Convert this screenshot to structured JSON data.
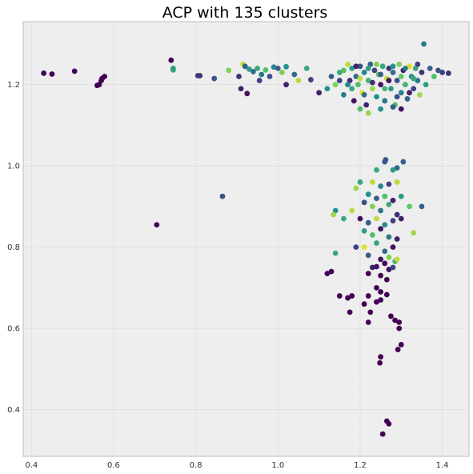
{
  "chart_data": {
    "type": "scatter",
    "title": "ACP with 135 clusters",
    "xlabel": "",
    "ylabel": "",
    "xlim": [
      0.38,
      1.465
    ],
    "ylim": [
      0.285,
      1.355
    ],
    "xticks": [
      0.4,
      0.6,
      0.8,
      1.0,
      1.2,
      1.4
    ],
    "yticks": [
      0.4,
      0.6,
      0.8,
      1.0,
      1.2
    ],
    "xtick_labels": [
      "0.4",
      "0.6",
      "0.8",
      "1.0",
      "1.2",
      "1.4"
    ],
    "ytick_labels": [
      "0.4",
      "0.6",
      "0.8",
      "1.0",
      "1.2"
    ],
    "grid": true,
    "legend": "none",
    "colormap": "viridis",
    "colormap_stops": [
      "#440154",
      "#3b528b",
      "#21918c",
      "#5ec962",
      "#fde725"
    ],
    "points": [
      {
        "x": 0.43,
        "y": 1.228,
        "c": 0
      },
      {
        "x": 0.45,
        "y": 1.226,
        "c": 0
      },
      {
        "x": 0.505,
        "y": 1.233,
        "c": 0
      },
      {
        "x": 0.56,
        "y": 1.198,
        "c": 0
      },
      {
        "x": 0.565,
        "y": 1.2,
        "c": 0
      },
      {
        "x": 0.57,
        "y": 1.21,
        "c": 0
      },
      {
        "x": 0.572,
        "y": 1.215,
        "c": 0
      },
      {
        "x": 0.578,
        "y": 1.22,
        "c": 0
      },
      {
        "x": 0.74,
        "y": 1.26,
        "c": 0
      },
      {
        "x": 0.745,
        "y": 1.236,
        "c": 0.6
      },
      {
        "x": 0.745,
        "y": 1.24,
        "c": 0.55
      },
      {
        "x": 0.805,
        "y": 1.222,
        "c": 0.2
      },
      {
        "x": 0.81,
        "y": 1.222,
        "c": 0.15
      },
      {
        "x": 0.845,
        "y": 1.215,
        "c": 0.25
      },
      {
        "x": 0.88,
        "y": 1.235,
        "c": 0.8
      },
      {
        "x": 0.905,
        "y": 1.22,
        "c": 0.15
      },
      {
        "x": 0.91,
        "y": 1.19,
        "c": 0.1
      },
      {
        "x": 0.915,
        "y": 1.25,
        "c": 0.9
      },
      {
        "x": 0.92,
        "y": 1.245,
        "c": 0.3
      },
      {
        "x": 0.925,
        "y": 1.178,
        "c": 0.05
      },
      {
        "x": 0.93,
        "y": 1.238,
        "c": 0.55
      },
      {
        "x": 0.94,
        "y": 1.232,
        "c": 0.35
      },
      {
        "x": 0.95,
        "y": 1.24,
        "c": 0.6
      },
      {
        "x": 0.955,
        "y": 1.21,
        "c": 0.2
      },
      {
        "x": 0.96,
        "y": 1.225,
        "c": 0.4
      },
      {
        "x": 0.97,
        "y": 1.236,
        "c": 0.7
      },
      {
        "x": 0.98,
        "y": 1.22,
        "c": 0.25
      },
      {
        "x": 0.99,
        "y": 1.243,
        "c": 0.45
      },
      {
        "x": 1.0,
        "y": 1.24,
        "c": 0.3
      },
      {
        "x": 1.01,
        "y": 1.23,
        "c": 0.8
      },
      {
        "x": 1.02,
        "y": 1.2,
        "c": 0.1
      },
      {
        "x": 1.02,
        "y": 1.244,
        "c": 0.5
      },
      {
        "x": 1.04,
        "y": 1.225,
        "c": 0.35
      },
      {
        "x": 1.05,
        "y": 1.21,
        "c": 0.9
      },
      {
        "x": 1.07,
        "y": 1.24,
        "c": 0.6
      },
      {
        "x": 1.08,
        "y": 1.212,
        "c": 0.2
      },
      {
        "x": 1.1,
        "y": 1.18,
        "c": 0.1
      },
      {
        "x": 1.12,
        "y": 1.19,
        "c": 0.5
      },
      {
        "x": 1.13,
        "y": 1.22,
        "c": 0.3
      },
      {
        "x": 1.14,
        "y": 1.2,
        "c": 0.8
      },
      {
        "x": 1.15,
        "y": 1.23,
        "c": 0.6
      },
      {
        "x": 1.16,
        "y": 1.175,
        "c": 0.4
      },
      {
        "x": 1.17,
        "y": 1.25,
        "c": 0.9
      },
      {
        "x": 1.175,
        "y": 1.21,
        "c": 0.15
      },
      {
        "x": 1.18,
        "y": 1.24,
        "c": 0.55
      },
      {
        "x": 1.185,
        "y": 1.16,
        "c": 0.05
      },
      {
        "x": 1.19,
        "y": 1.22,
        "c": 0.35
      },
      {
        "x": 1.195,
        "y": 1.2,
        "c": 0.7
      },
      {
        "x": 1.2,
        "y": 1.245,
        "c": 0.25
      },
      {
        "x": 1.205,
        "y": 1.18,
        "c": 0.95
      },
      {
        "x": 1.21,
        "y": 1.23,
        "c": 0.45
      },
      {
        "x": 1.215,
        "y": 1.15,
        "c": 0.1
      },
      {
        "x": 1.22,
        "y": 1.21,
        "c": 0.65
      },
      {
        "x": 1.225,
        "y": 1.25,
        "c": 0.3
      },
      {
        "x": 1.23,
        "y": 1.19,
        "c": 0.85
      },
      {
        "x": 1.235,
        "y": 1.235,
        "c": 0.2
      },
      {
        "x": 1.24,
        "y": 1.17,
        "c": 0.5
      },
      {
        "x": 1.245,
        "y": 1.225,
        "c": 0.75
      },
      {
        "x": 1.25,
        "y": 1.2,
        "c": 0.05
      },
      {
        "x": 1.255,
        "y": 1.245,
        "c": 0.6
      },
      {
        "x": 1.26,
        "y": 1.16,
        "c": 0.4
      },
      {
        "x": 1.265,
        "y": 1.215,
        "c": 0.9
      },
      {
        "x": 1.27,
        "y": 1.24,
        "c": 0.15
      },
      {
        "x": 1.275,
        "y": 1.19,
        "c": 0.55
      },
      {
        "x": 1.28,
        "y": 1.23,
        "c": 0.35
      },
      {
        "x": 1.285,
        "y": 1.15,
        "c": 0.7
      },
      {
        "x": 1.29,
        "y": 1.21,
        "c": 0.25
      },
      {
        "x": 1.295,
        "y": 1.25,
        "c": 0.8
      },
      {
        "x": 1.3,
        "y": 1.18,
        "c": 0.45
      },
      {
        "x": 1.305,
        "y": 1.235,
        "c": 0.1
      },
      {
        "x": 1.31,
        "y": 1.2,
        "c": 0.65
      },
      {
        "x": 1.315,
        "y": 1.165,
        "c": 0.3
      },
      {
        "x": 1.32,
        "y": 1.245,
        "c": 0.95
      },
      {
        "x": 1.325,
        "y": 1.22,
        "c": 0.5
      },
      {
        "x": 1.33,
        "y": 1.19,
        "c": 0.2
      },
      {
        "x": 1.335,
        "y": 1.24,
        "c": 0.6
      },
      {
        "x": 1.34,
        "y": 1.21,
        "c": 0.4
      },
      {
        "x": 1.345,
        "y": 1.175,
        "c": 0.85
      },
      {
        "x": 1.35,
        "y": 1.23,
        "c": 0.15
      },
      {
        "x": 1.355,
        "y": 1.3,
        "c": 0.4
      },
      {
        "x": 1.36,
        "y": 1.2,
        "c": 0.55
      },
      {
        "x": 1.37,
        "y": 1.24,
        "c": 0.3
      },
      {
        "x": 1.38,
        "y": 1.22,
        "c": 0.7
      },
      {
        "x": 1.39,
        "y": 1.235,
        "c": 0.25
      },
      {
        "x": 1.4,
        "y": 1.23,
        "c": 0.2
      },
      {
        "x": 1.415,
        "y": 1.228,
        "c": 0.15
      },
      {
        "x": 1.15,
        "y": 1.21,
        "c": 0.2
      },
      {
        "x": 1.16,
        "y": 1.235,
        "c": 0.7
      },
      {
        "x": 1.17,
        "y": 1.2,
        "c": 0.45
      },
      {
        "x": 1.18,
        "y": 1.19,
        "c": 0.6
      },
      {
        "x": 1.19,
        "y": 1.245,
        "c": 0.1
      },
      {
        "x": 1.2,
        "y": 1.215,
        "c": 0.9
      },
      {
        "x": 1.21,
        "y": 1.175,
        "c": 0.35
      },
      {
        "x": 1.22,
        "y": 1.24,
        "c": 0.55
      },
      {
        "x": 1.23,
        "y": 1.205,
        "c": 0.15
      },
      {
        "x": 1.24,
        "y": 1.25,
        "c": 0.8
      },
      {
        "x": 1.25,
        "y": 1.225,
        "c": 0.3
      },
      {
        "x": 1.26,
        "y": 1.19,
        "c": 0.65
      },
      {
        "x": 1.27,
        "y": 1.21,
        "c": 0.05
      },
      {
        "x": 1.28,
        "y": 1.245,
        "c": 0.5
      },
      {
        "x": 1.29,
        "y": 1.17,
        "c": 0.25
      },
      {
        "x": 1.3,
        "y": 1.22,
        "c": 0.75
      },
      {
        "x": 1.31,
        "y": 1.24,
        "c": 0.4
      },
      {
        "x": 1.32,
        "y": 1.18,
        "c": 0.1
      },
      {
        "x": 1.33,
        "y": 1.215,
        "c": 0.6
      },
      {
        "x": 1.34,
        "y": 1.25,
        "c": 0.2
      },
      {
        "x": 1.2,
        "y": 1.14,
        "c": 0.7
      },
      {
        "x": 1.22,
        "y": 1.13,
        "c": 0.85
      },
      {
        "x": 1.25,
        "y": 1.14,
        "c": 0.5
      },
      {
        "x": 1.28,
        "y": 1.145,
        "c": 0.3
      },
      {
        "x": 1.3,
        "y": 1.14,
        "c": 0.05
      },
      {
        "x": 1.26,
        "y": 1.01,
        "c": 0.3
      },
      {
        "x": 1.262,
        "y": 1.015,
        "c": 0.25
      },
      {
        "x": 1.305,
        "y": 1.01,
        "c": 0.3
      },
      {
        "x": 1.24,
        "y": 0.99,
        "c": 0.6
      },
      {
        "x": 1.28,
        "y": 0.99,
        "c": 0.55
      },
      {
        "x": 1.29,
        "y": 0.995,
        "c": 0.35
      },
      {
        "x": 1.2,
        "y": 0.96,
        "c": 0.6
      },
      {
        "x": 1.23,
        "y": 0.96,
        "c": 0.9
      },
      {
        "x": 1.25,
        "y": 0.95,
        "c": 0.45
      },
      {
        "x": 1.27,
        "y": 0.955,
        "c": 0.2
      },
      {
        "x": 1.29,
        "y": 0.96,
        "c": 0.9
      },
      {
        "x": 1.19,
        "y": 0.945,
        "c": 0.85
      },
      {
        "x": 1.22,
        "y": 0.93,
        "c": 0.5
      },
      {
        "x": 1.24,
        "y": 0.92,
        "c": 0.3
      },
      {
        "x": 1.26,
        "y": 0.925,
        "c": 0.7
      },
      {
        "x": 1.28,
        "y": 0.915,
        "c": 0.1
      },
      {
        "x": 1.3,
        "y": 0.925,
        "c": 0.55
      },
      {
        "x": 1.21,
        "y": 0.91,
        "c": 0.25
      },
      {
        "x": 1.23,
        "y": 0.9,
        "c": 0.8
      },
      {
        "x": 1.25,
        "y": 0.89,
        "c": 0.4
      },
      {
        "x": 1.27,
        "y": 0.905,
        "c": 0.6
      },
      {
        "x": 1.29,
        "y": 0.88,
        "c": 0.15
      },
      {
        "x": 1.35,
        "y": 0.9,
        "c": 0.3
      },
      {
        "x": 1.32,
        "y": 0.9,
        "c": 0.75
      },
      {
        "x": 1.14,
        "y": 0.89,
        "c": 0.5
      },
      {
        "x": 1.16,
        "y": 0.87,
        "c": 0.6
      },
      {
        "x": 1.135,
        "y": 0.88,
        "c": 0.85
      },
      {
        "x": 1.18,
        "y": 0.89,
        "c": 0.9
      },
      {
        "x": 1.2,
        "y": 0.87,
        "c": 0.05
      },
      {
        "x": 1.22,
        "y": 0.86,
        "c": 0.3
      },
      {
        "x": 1.24,
        "y": 0.87,
        "c": 0.9
      },
      {
        "x": 1.26,
        "y": 0.855,
        "c": 0.5
      },
      {
        "x": 1.28,
        "y": 0.865,
        "c": 0.2
      },
      {
        "x": 1.3,
        "y": 0.87,
        "c": 0.1
      },
      {
        "x": 1.21,
        "y": 0.84,
        "c": 0.55
      },
      {
        "x": 1.23,
        "y": 0.83,
        "c": 0.7
      },
      {
        "x": 1.25,
        "y": 0.845,
        "c": 0.05
      },
      {
        "x": 1.27,
        "y": 0.825,
        "c": 0.4
      },
      {
        "x": 1.29,
        "y": 0.82,
        "c": 0.1
      },
      {
        "x": 1.33,
        "y": 0.835,
        "c": 0.85
      },
      {
        "x": 1.19,
        "y": 0.8,
        "c": 0.2
      },
      {
        "x": 1.21,
        "y": 0.8,
        "c": 0.95
      },
      {
        "x": 1.24,
        "y": 0.81,
        "c": 0.6
      },
      {
        "x": 1.26,
        "y": 0.79,
        "c": 0.35
      },
      {
        "x": 1.28,
        "y": 0.8,
        "c": 0.05
      },
      {
        "x": 1.14,
        "y": 0.785,
        "c": 0.6
      },
      {
        "x": 1.22,
        "y": 0.78,
        "c": 0.3
      },
      {
        "x": 1.25,
        "y": 0.77,
        "c": 0.05
      },
      {
        "x": 1.27,
        "y": 0.775,
        "c": 0.8
      },
      {
        "x": 1.285,
        "y": 0.765,
        "c": 0.65
      },
      {
        "x": 1.29,
        "y": 0.77,
        "c": 0.9
      },
      {
        "x": 1.23,
        "y": 0.75,
        "c": 0.1
      },
      {
        "x": 1.24,
        "y": 0.752,
        "c": 0.05
      },
      {
        "x": 1.26,
        "y": 0.76,
        "c": 0.0
      },
      {
        "x": 1.27,
        "y": 0.745,
        "c": 0.05
      },
      {
        "x": 1.28,
        "y": 0.75,
        "c": 0.2
      },
      {
        "x": 1.12,
        "y": 0.735,
        "c": 0.0
      },
      {
        "x": 1.13,
        "y": 0.74,
        "c": 0.0
      },
      {
        "x": 1.22,
        "y": 0.735,
        "c": 0.0
      },
      {
        "x": 1.25,
        "y": 0.73,
        "c": 0.0
      },
      {
        "x": 1.265,
        "y": 0.72,
        "c": 0.0
      },
      {
        "x": 1.24,
        "y": 0.7,
        "c": 0.0
      },
      {
        "x": 1.25,
        "y": 0.69,
        "c": 0.0
      },
      {
        "x": 1.22,
        "y": 0.68,
        "c": 0.0
      },
      {
        "x": 1.15,
        "y": 0.68,
        "c": 0.0
      },
      {
        "x": 1.17,
        "y": 0.675,
        "c": 0.0
      },
      {
        "x": 1.18,
        "y": 0.68,
        "c": 0.0
      },
      {
        "x": 1.25,
        "y": 0.67,
        "c": 0.0
      },
      {
        "x": 1.265,
        "y": 0.683,
        "c": 0.0
      },
      {
        "x": 1.24,
        "y": 0.665,
        "c": 0.0
      },
      {
        "x": 1.21,
        "y": 0.66,
        "c": 0.0
      },
      {
        "x": 1.225,
        "y": 0.64,
        "c": 0.0
      },
      {
        "x": 1.175,
        "y": 0.64,
        "c": 0.0
      },
      {
        "x": 1.275,
        "y": 0.63,
        "c": 0.0
      },
      {
        "x": 1.285,
        "y": 0.62,
        "c": 0.0
      },
      {
        "x": 1.295,
        "y": 0.615,
        "c": 0.0
      },
      {
        "x": 1.22,
        "y": 0.615,
        "c": 0.0
      },
      {
        "x": 1.295,
        "y": 0.6,
        "c": 0.0
      },
      {
        "x": 1.3,
        "y": 0.56,
        "c": 0.0
      },
      {
        "x": 1.292,
        "y": 0.548,
        "c": 0.0
      },
      {
        "x": 1.25,
        "y": 0.53,
        "c": 0.0
      },
      {
        "x": 1.248,
        "y": 0.515,
        "c": 0.0
      },
      {
        "x": 1.265,
        "y": 0.372,
        "c": 0.0
      },
      {
        "x": 1.27,
        "y": 0.365,
        "c": 0.0
      },
      {
        "x": 1.255,
        "y": 0.34,
        "c": 0.0
      },
      {
        "x": 0.865,
        "y": 0.925,
        "c": 0.25
      },
      {
        "x": 0.705,
        "y": 0.855,
        "c": 0.0
      }
    ]
  }
}
